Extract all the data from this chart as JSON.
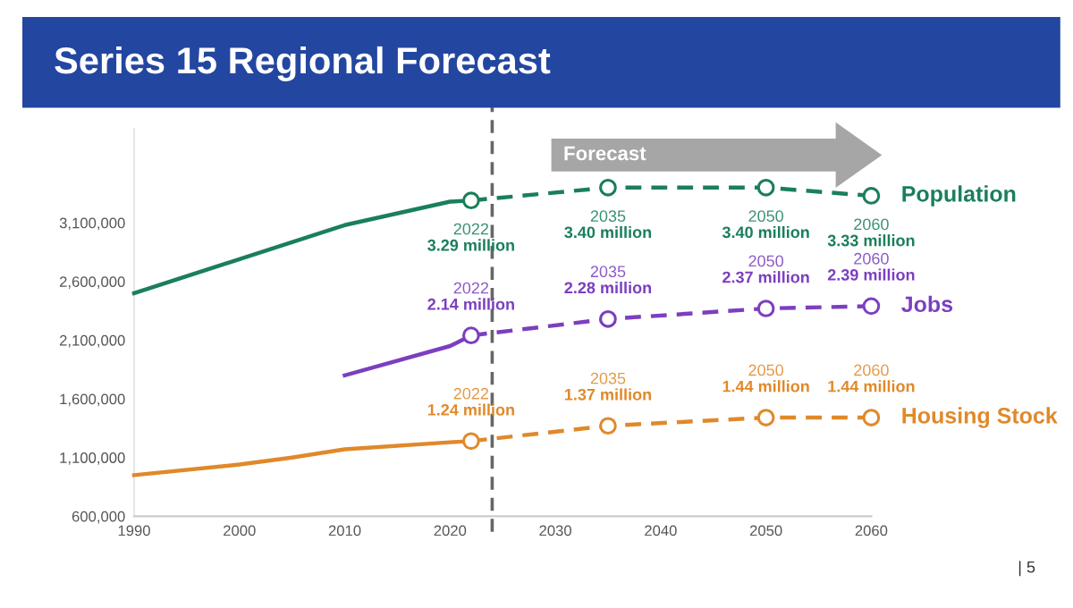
{
  "chart_data": {
    "type": "line",
    "title": "Series 15 Regional Forecast",
    "xlim": [
      1990,
      2060
    ],
    "xticks": [
      1990,
      2000,
      2010,
      2020,
      2030,
      2040,
      2050,
      2060
    ],
    "ylim": [
      600000,
      3900000
    ],
    "yticks": [
      {
        "value": 600000,
        "label": "600,000"
      },
      {
        "value": 1100000,
        "label": "1,100,000"
      },
      {
        "value": 1600000,
        "label": "1,600,000"
      },
      {
        "value": 2100000,
        "label": "2,100,000"
      },
      {
        "value": 2600000,
        "label": "2,600,000"
      },
      {
        "value": 3100000,
        "label": "3,100,000"
      }
    ],
    "grid": false,
    "legend": false,
    "series": [
      {
        "color": "#1a7f5a",
        "x": [
          1990,
          2000,
          2010,
          2020,
          2022
        ],
        "values": [
          2500000,
          2790000,
          3080000,
          3280000,
          3290000
        ],
        "line_style": "solid",
        "marker": "none"
      },
      {
        "name": "Population",
        "color": "#1a7f5a",
        "x": [
          2022,
          2035,
          2050,
          2060
        ],
        "values": [
          3290000,
          3400000,
          3400000,
          3330000
        ],
        "line_style": "dashed",
        "marker": "circle"
      },
      {
        "color": "#7b3fbf",
        "x": [
          2010,
          2020,
          2022
        ],
        "values": [
          1800000,
          2050000,
          2140000
        ],
        "line_style": "solid",
        "marker": "none"
      },
      {
        "name": "Jobs",
        "color": "#7b3fbf",
        "x": [
          2022,
          2035,
          2050,
          2060
        ],
        "values": [
          2140000,
          2280000,
          2370000,
          2390000
        ],
        "line_style": "dashed",
        "marker": "circle"
      },
      {
        "color": "#e0892a",
        "x": [
          1990,
          2000,
          2005,
          2010,
          2020,
          2022
        ],
        "values": [
          950000,
          1040000,
          1100000,
          1170000,
          1230000,
          1240000
        ],
        "line_style": "solid",
        "marker": "none"
      },
      {
        "name": "Housing Stock",
        "color": "#e0892a",
        "x": [
          2022,
          2035,
          2050,
          2060
        ],
        "values": [
          1240000,
          1370000,
          1440000,
          1440000
        ],
        "line_style": "dashed",
        "marker": "circle"
      }
    ],
    "ref_lines": [
      {
        "axis": "x",
        "value": 2024,
        "color": "#666666",
        "line_style": "dashed"
      }
    ],
    "annotations": [
      {
        "text": "2022\n3.29 million",
        "x": 2022,
        "y": 3290000
      },
      {
        "text": "2035\n3.40 million",
        "x": 2035,
        "y": 3400000
      },
      {
        "text": "2050\n3.40 million",
        "x": 2050,
        "y": 3400000
      },
      {
        "text": "2060\n3.33 million",
        "x": 2060,
        "y": 3330000
      },
      {
        "text": "2022\n2.14 million",
        "x": 2022,
        "y": 2140000
      },
      {
        "text": "2035\n2.28 million",
        "x": 2035,
        "y": 2280000
      },
      {
        "text": "2050\n2.37 million",
        "x": 2050,
        "y": 2370000
      },
      {
        "text": "2060\n2.39 million",
        "x": 2060,
        "y": 2390000
      },
      {
        "text": "2022\n1.24 million",
        "x": 2022,
        "y": 1240000
      },
      {
        "text": "2035\n1.37 million",
        "x": 2035,
        "y": 1370000
      },
      {
        "text": "2050\n1.44 million",
        "x": 2050,
        "y": 1440000
      },
      {
        "text": "2060\n1.44 million",
        "x": 2060,
        "y": 1440000
      },
      "Forecast",
      "| 5"
    ]
  }
}
